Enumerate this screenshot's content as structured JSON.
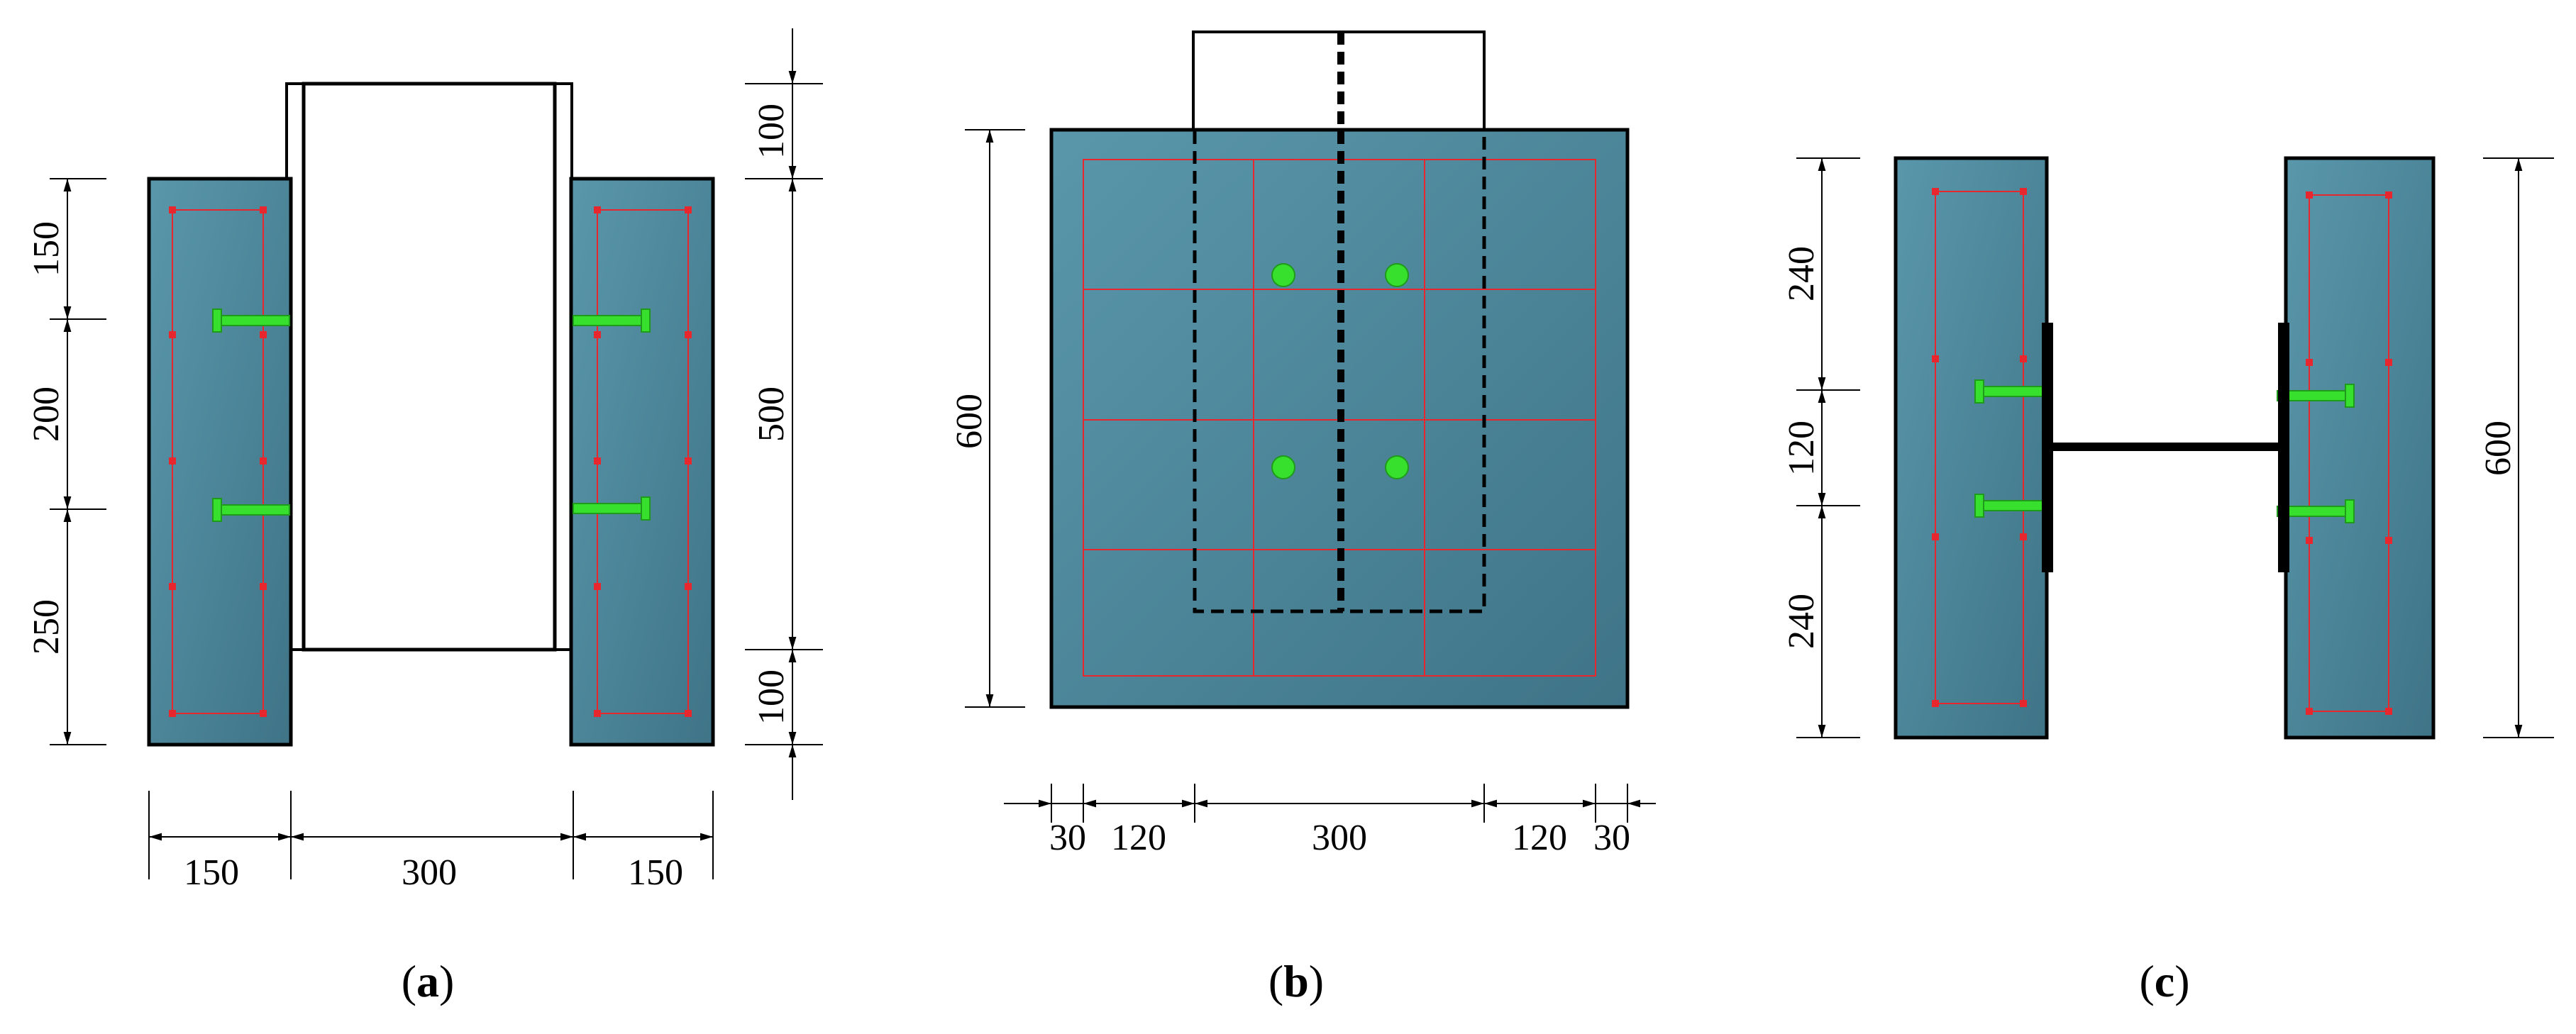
{
  "colors": {
    "concrete": "#4e8ba0",
    "rebar": "#e8262d",
    "stud": "#38e02e",
    "stud_dark": "#1f9a1a",
    "steel": "#000000"
  },
  "figure_a": {
    "caption_open": "(",
    "caption_letter": "a",
    "caption_close": ")",
    "dims_left": [
      "150",
      "200",
      "250"
    ],
    "dims_right": [
      "100",
      "500",
      "100"
    ],
    "dims_bottom": [
      "150",
      "300",
      "150"
    ]
  },
  "figure_b": {
    "caption_open": "(",
    "caption_letter": "b",
    "caption_close": ")",
    "dim_left": "600",
    "dims_bottom": [
      "30",
      "120",
      "300",
      "120",
      "30"
    ]
  },
  "figure_c": {
    "caption_open": "(",
    "caption_letter": "c",
    "caption_close": ")",
    "dims_left": [
      "240",
      "120",
      "240"
    ],
    "dim_right": "600"
  }
}
